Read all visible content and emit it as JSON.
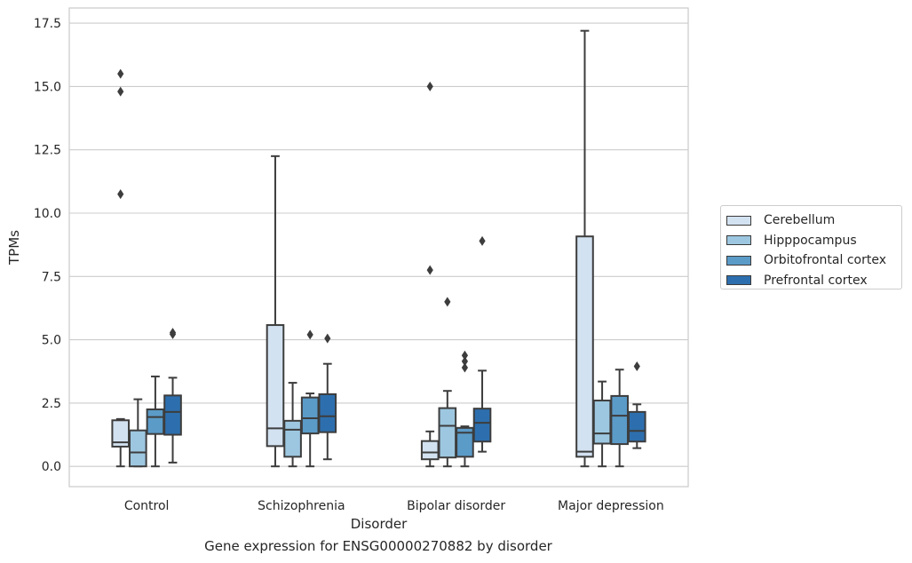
{
  "chart_data": {
    "type": "boxplot",
    "caption": "Gene expression for ENSG00000270882 by disorder",
    "xlabel": "Disorder",
    "ylabel": "TPMs",
    "ylim": [
      -0.8,
      18.1
    ],
    "yticks": [
      0.0,
      2.5,
      5.0,
      7.5,
      10.0,
      12.5,
      15.0,
      17.5
    ],
    "ytick_labels": [
      "0.0",
      "2.5",
      "5.0",
      "7.5",
      "10.0",
      "12.5",
      "15.0",
      "17.5"
    ],
    "grid": "horizontal",
    "legend_position": "right",
    "categories": [
      "Control",
      "Schizophrenia",
      "Bipolar disorder",
      "Major depression"
    ],
    "series": [
      {
        "name": "Cerebellum",
        "color": "#d3e2f1",
        "boxes": [
          {
            "whisker_low": 0.0,
            "q1": 0.78,
            "median": 0.95,
            "q3": 1.82,
            "whisker_high": 1.87,
            "outliers": [
              10.75,
              14.8,
              15.5
            ]
          },
          {
            "whisker_low": 0.0,
            "q1": 0.8,
            "median": 1.5,
            "q3": 5.58,
            "whisker_high": 12.25,
            "outliers": []
          },
          {
            "whisker_low": 0.0,
            "q1": 0.28,
            "median": 0.55,
            "q3": 1.0,
            "whisker_high": 1.38,
            "outliers": [
              7.75,
              15.0
            ]
          },
          {
            "whisker_low": 0.0,
            "q1": 0.38,
            "median": 0.58,
            "q3": 9.08,
            "whisker_high": 17.2,
            "outliers": []
          }
        ]
      },
      {
        "name": "Hipppocampus",
        "color": "#9dc7e0",
        "boxes": [
          {
            "whisker_low": 0.0,
            "q1": 0.0,
            "median": 0.55,
            "q3": 1.42,
            "whisker_high": 2.65,
            "outliers": []
          },
          {
            "whisker_low": 0.0,
            "q1": 0.38,
            "median": 1.45,
            "q3": 1.8,
            "whisker_high": 3.3,
            "outliers": []
          },
          {
            "whisker_low": 0.0,
            "q1": 0.35,
            "median": 1.6,
            "q3": 2.3,
            "whisker_high": 2.98,
            "outliers": [
              6.5
            ]
          },
          {
            "whisker_low": 0.0,
            "q1": 0.9,
            "median": 1.3,
            "q3": 2.6,
            "whisker_high": 3.35,
            "outliers": []
          }
        ]
      },
      {
        "name": "Orbitofrontal cortex",
        "color": "#5b9bc8",
        "boxes": [
          {
            "whisker_low": 0.0,
            "q1": 1.28,
            "median": 1.95,
            "q3": 2.25,
            "whisker_high": 3.55,
            "outliers": []
          },
          {
            "whisker_low": 0.0,
            "q1": 1.3,
            "median": 1.9,
            "q3": 2.72,
            "whisker_high": 2.88,
            "outliers": [
              5.2
            ]
          },
          {
            "whisker_low": 0.0,
            "q1": 0.38,
            "median": 1.33,
            "q3": 1.52,
            "whisker_high": 1.58,
            "outliers": [
              3.9,
              4.15,
              4.38
            ]
          },
          {
            "whisker_low": 0.0,
            "q1": 0.88,
            "median": 2.0,
            "q3": 2.78,
            "whisker_high": 3.82,
            "outliers": []
          }
        ]
      },
      {
        "name": "Prefrontal cortex",
        "color": "#2d6fae",
        "boxes": [
          {
            "whisker_low": 0.15,
            "q1": 1.25,
            "median": 2.15,
            "q3": 2.8,
            "whisker_high": 3.5,
            "outliers": [
              5.22,
              5.28
            ]
          },
          {
            "whisker_low": 0.28,
            "q1": 1.35,
            "median": 1.98,
            "q3": 2.85,
            "whisker_high": 4.05,
            "outliers": [
              5.05
            ]
          },
          {
            "whisker_low": 0.58,
            "q1": 0.98,
            "median": 1.72,
            "q3": 2.28,
            "whisker_high": 3.78,
            "outliers": [
              8.9
            ]
          },
          {
            "whisker_low": 0.72,
            "q1": 0.98,
            "median": 1.4,
            "q3": 2.15,
            "whisker_high": 2.45,
            "outliers": [
              3.95
            ]
          }
        ]
      }
    ]
  }
}
